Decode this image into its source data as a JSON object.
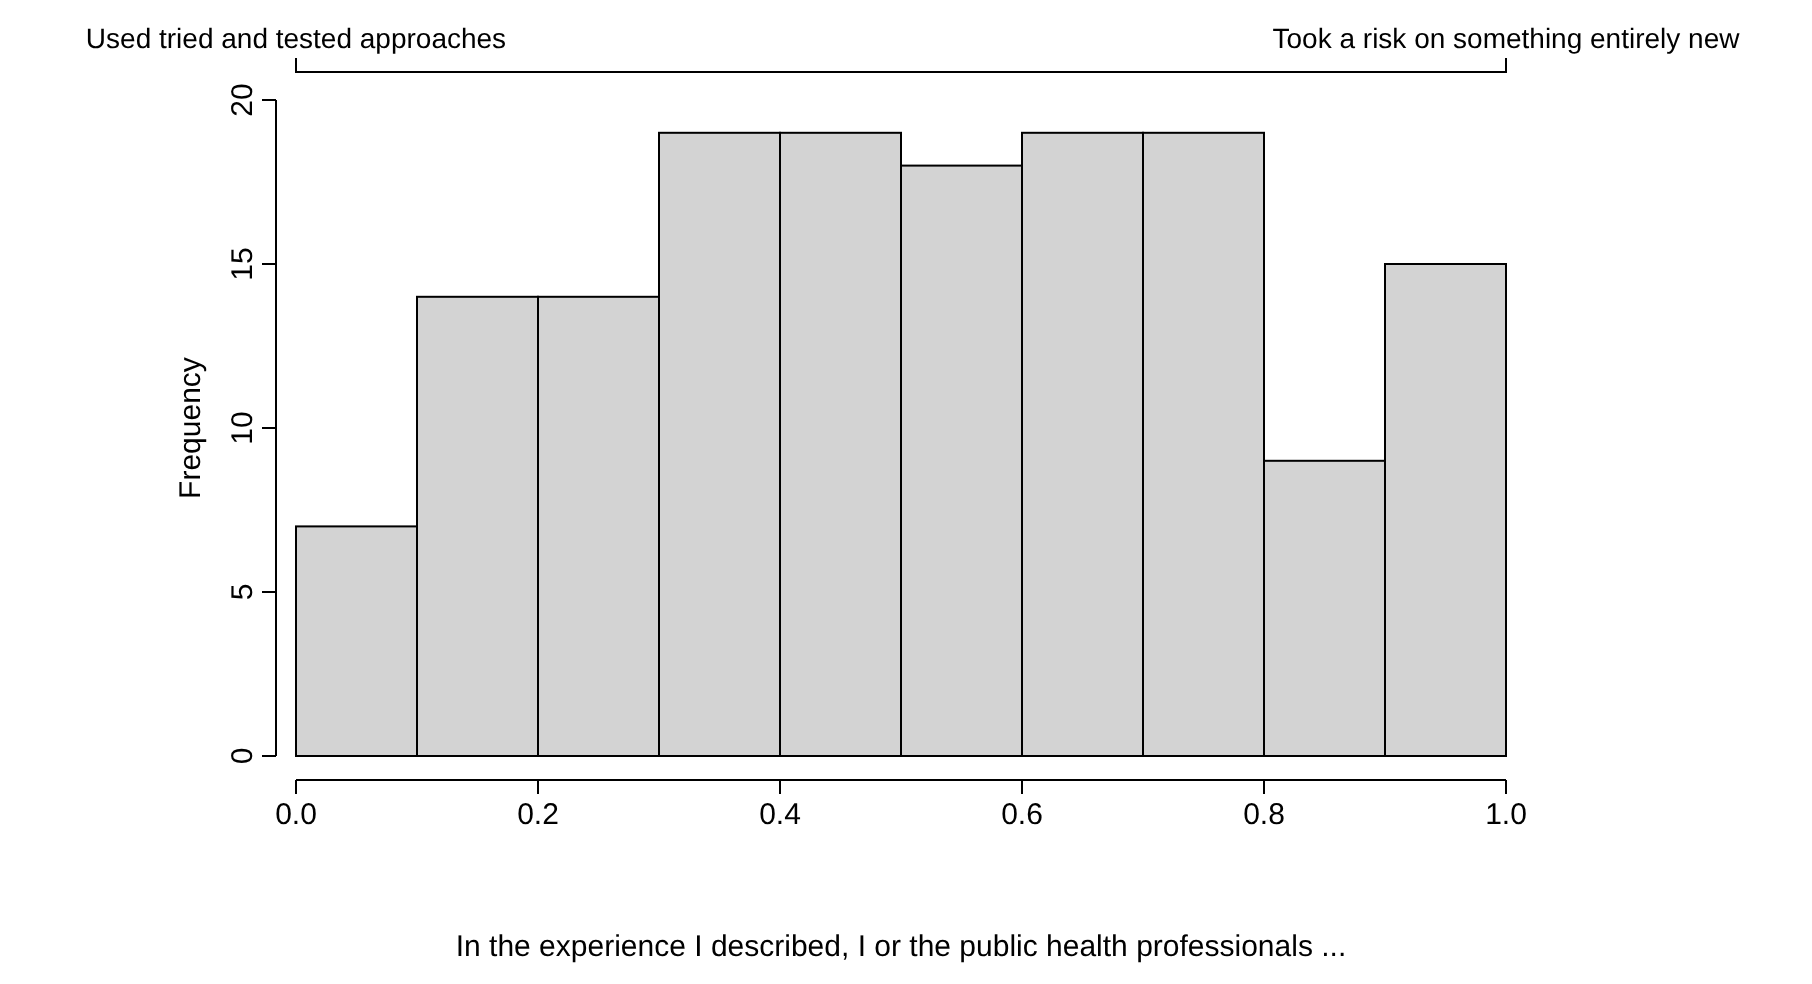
{
  "chart_data": {
    "type": "histogram",
    "xlabel": "In the experience I described, I or the public health professionals ...",
    "ylabel": "Frequency",
    "bins": [
      0,
      0.1,
      0.2,
      0.3,
      0.4,
      0.5,
      0.6,
      0.7,
      0.8,
      0.9,
      1.0
    ],
    "values": [
      7,
      14,
      14,
      19,
      19,
      18,
      19,
      19,
      9,
      15
    ],
    "color": "#d3d3d3",
    "xlim": [
      0,
      1
    ],
    "xticks": [
      {
        "value": 0,
        "label": "0.0"
      },
      {
        "value": 0.2,
        "label": "0.2"
      },
      {
        "value": 0.4,
        "label": "0.4"
      },
      {
        "value": 0.6,
        "label": "0.6"
      },
      {
        "value": 0.8,
        "label": "0.8"
      },
      {
        "value": 1,
        "label": "1.0"
      }
    ],
    "ylim": [
      0,
      20
    ],
    "yticks": [
      0,
      5,
      10,
      15,
      20
    ],
    "annotations": [
      "Used tried and tested approaches",
      "Took a risk on something entirely new"
    ]
  }
}
